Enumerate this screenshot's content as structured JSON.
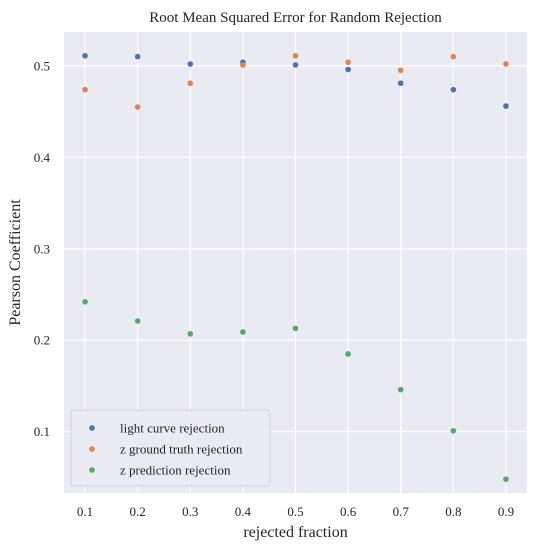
{
  "chart_data": {
    "type": "scatter",
    "title": "Root Mean Squared Error for Random Rejection",
    "xlabel": "rejected fraction",
    "ylabel": "Pearson Coefficient",
    "xlim": [
      0.06,
      0.94
    ],
    "ylim": [
      0.033,
      0.537
    ],
    "xticks": [
      0.1,
      0.2,
      0.3,
      0.4,
      0.5,
      0.6,
      0.7,
      0.8,
      0.9
    ],
    "xtick_labels": [
      "0.1",
      "0.2",
      "0.3",
      "0.4",
      "0.5",
      "0.6",
      "0.7",
      "0.8",
      "0.9"
    ],
    "yticks": [
      0.1,
      0.2,
      0.3,
      0.4,
      0.5
    ],
    "ytick_labels": [
      "0.1",
      "0.2",
      "0.3",
      "0.4",
      "0.5"
    ],
    "grid": true,
    "legend_position": "lower-left",
    "x": [
      0.1,
      0.2,
      0.3,
      0.4,
      0.5,
      0.6,
      0.7,
      0.8,
      0.9
    ],
    "series": [
      {
        "name": "light curve rejection",
        "color": "#4c72b0",
        "values": [
          0.511,
          0.51,
          0.502,
          0.504,
          0.501,
          0.496,
          0.481,
          0.474,
          0.456
        ]
      },
      {
        "name": "z ground truth rejection",
        "color": "#dd8452",
        "values": [
          0.474,
          0.455,
          0.481,
          0.501,
          0.511,
          0.504,
          0.495,
          0.51,
          0.502
        ]
      },
      {
        "name": "z prediction rejection",
        "color": "#55a868",
        "values": [
          0.242,
          0.221,
          0.207,
          0.209,
          0.213,
          0.185,
          0.146,
          0.101,
          0.048
        ]
      }
    ]
  }
}
